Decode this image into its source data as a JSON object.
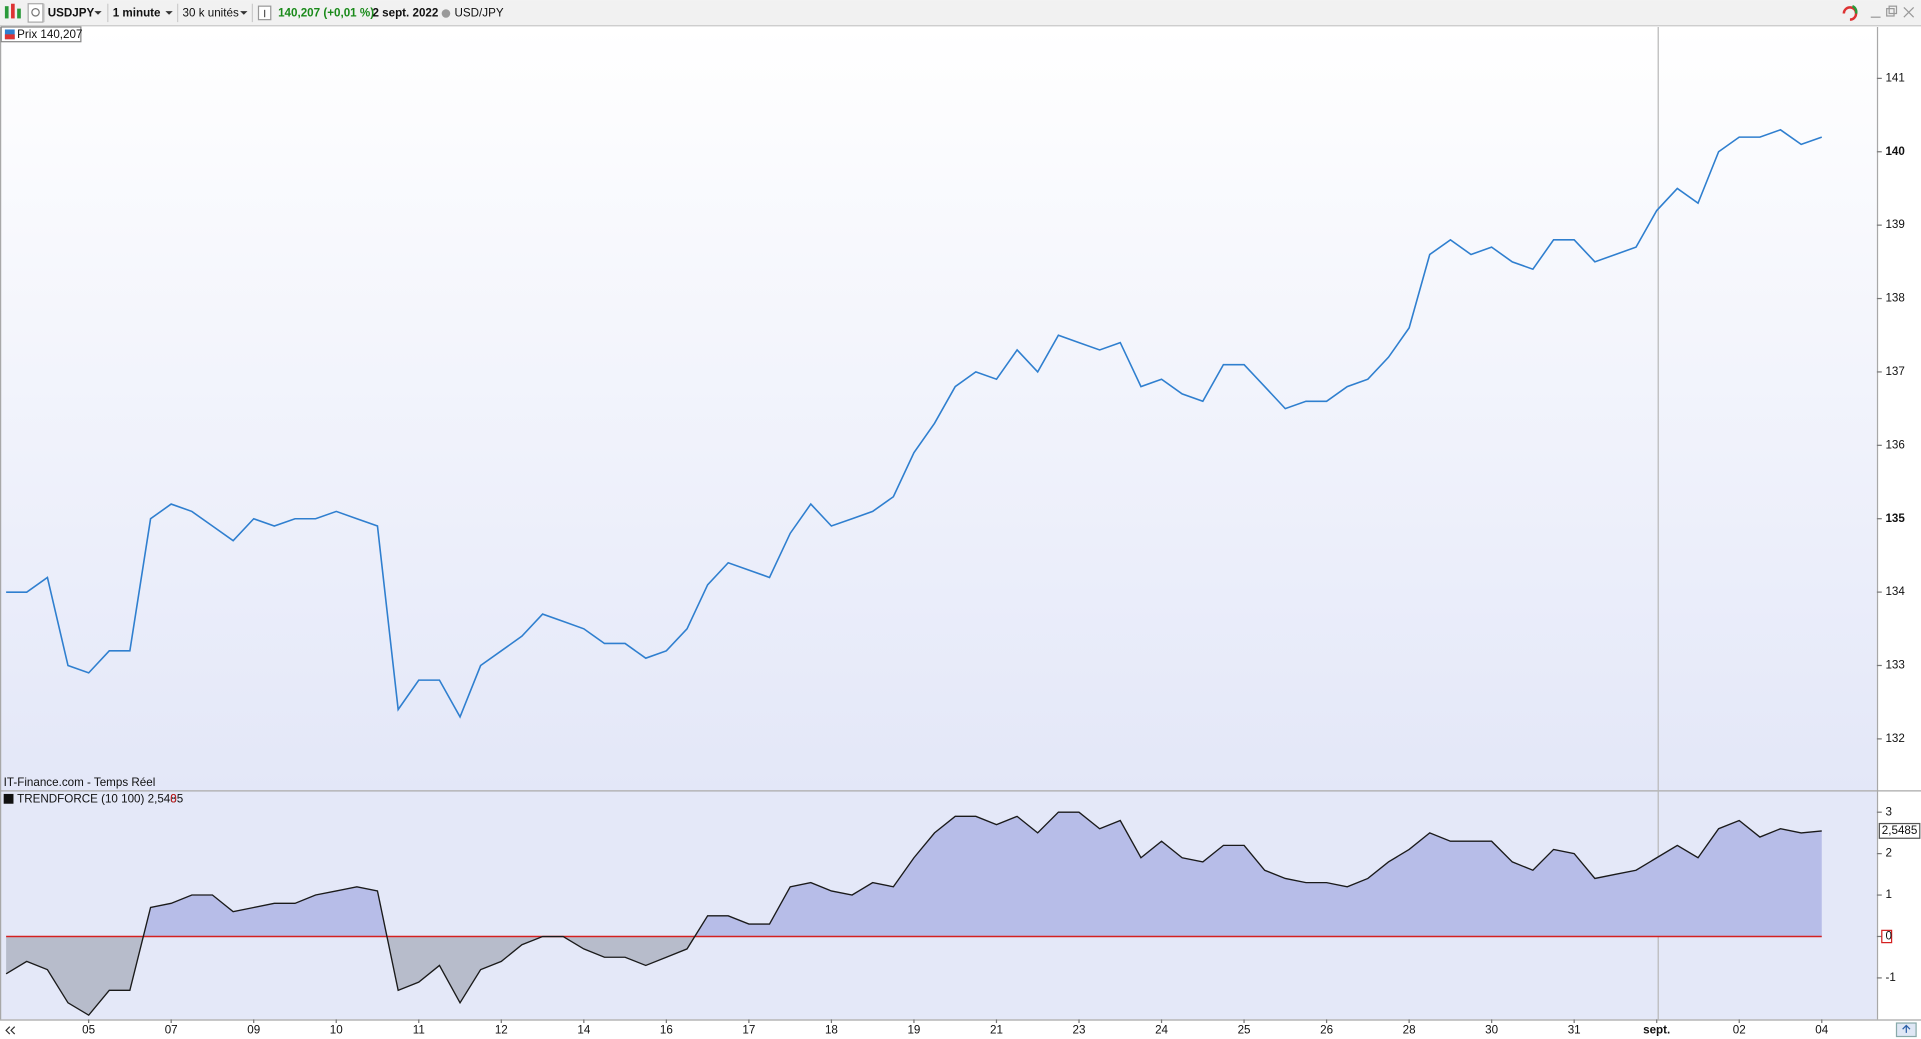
{
  "toolbar": {
    "symbol": "USDJPY",
    "interval": "1 minute",
    "units": "30 k unités",
    "quote": "140,207 (+0,01 %)",
    "date": "2 sept. 2022",
    "instrument": "USD/JPY"
  },
  "chart_data": [
    {
      "type": "line",
      "legend": "Prix 140,207",
      "source": "IT-Finance.com - Temps Réel",
      "color": "#2f7fcf",
      "categories": [
        null,
        null,
        null,
        null,
        "05",
        null,
        null,
        null,
        "07",
        null,
        null,
        null,
        "09",
        null,
        null,
        null,
        "10",
        null,
        null,
        null,
        "11",
        null,
        null,
        null,
        "12",
        null,
        null,
        null,
        "14",
        null,
        null,
        null,
        "16",
        null,
        null,
        null,
        "17",
        null,
        null,
        null,
        "18",
        null,
        null,
        null,
        "19",
        null,
        null,
        null,
        "21",
        null,
        null,
        null,
        "23",
        null,
        null,
        null,
        "24",
        null,
        null,
        null,
        "25",
        null,
        null,
        null,
        "26",
        null,
        null,
        null,
        "28",
        null,
        null,
        null,
        "30",
        null,
        null,
        null,
        "31",
        null,
        null,
        null,
        "sept.",
        null,
        null,
        null,
        "02",
        null,
        null,
        null,
        "04"
      ],
      "values": [
        134.0,
        134.0,
        134.2,
        133.0,
        132.9,
        133.2,
        133.2,
        135.0,
        135.2,
        135.1,
        134.9,
        134.7,
        135.0,
        134.9,
        135.0,
        135.0,
        135.1,
        135.0,
        134.9,
        132.4,
        132.8,
        132.8,
        132.3,
        133.0,
        133.2,
        133.4,
        133.7,
        133.6,
        133.5,
        133.3,
        133.3,
        133.1,
        133.2,
        133.5,
        134.1,
        134.4,
        134.3,
        134.2,
        134.8,
        135.2,
        134.9,
        135.0,
        135.1,
        135.3,
        135.9,
        136.3,
        136.8,
        137.0,
        136.9,
        137.3,
        137.0,
        137.5,
        137.4,
        137.3,
        137.4,
        136.8,
        136.9,
        136.7,
        136.6,
        137.1,
        137.1,
        136.8,
        136.5,
        136.6,
        136.6,
        136.8,
        136.9,
        137.2,
        137.6,
        138.6,
        138.8,
        138.6,
        138.7,
        138.5,
        138.4,
        138.8,
        138.8,
        138.5,
        138.6,
        138.7,
        139.2,
        139.5,
        139.3,
        140.0,
        140.2,
        140.2,
        140.3,
        140.1,
        140.2
      ],
      "ylim": [
        131.3,
        141.7
      ],
      "yticks": [
        132,
        133,
        134,
        135,
        136,
        137,
        138,
        139,
        140,
        141
      ],
      "grid": false
    },
    {
      "type": "area",
      "legend": "TRENDFORCE (10 100) 2,5485",
      "legend_flag": "0",
      "last_value_label": "2,5485",
      "color": "#1a1a1a",
      "fill": "#b7bde8",
      "negative_fill": "#b7bccb",
      "baseline": 0,
      "baseline_color": "#d42020",
      "values": [
        -0.9,
        -0.6,
        -0.8,
        -1.6,
        -1.9,
        -1.3,
        -1.3,
        0.7,
        0.8,
        1.0,
        1.0,
        0.6,
        0.7,
        0.8,
        0.8,
        1.0,
        1.1,
        1.2,
        1.1,
        -1.3,
        -1.1,
        -0.7,
        -1.6,
        -0.8,
        -0.6,
        -0.2,
        0.0,
        0.0,
        -0.3,
        -0.5,
        -0.5,
        -0.7,
        -0.5,
        -0.3,
        0.5,
        0.5,
        0.3,
        0.3,
        1.2,
        1.3,
        1.1,
        1.0,
        1.3,
        1.2,
        1.9,
        2.5,
        2.9,
        2.9,
        2.7,
        2.9,
        2.5,
        3.0,
        3.0,
        2.6,
        2.8,
        1.9,
        2.3,
        1.9,
        1.8,
        2.2,
        2.2,
        1.6,
        1.4,
        1.3,
        1.3,
        1.2,
        1.4,
        1.8,
        2.1,
        2.5,
        2.3,
        2.3,
        2.3,
        1.8,
        1.6,
        2.1,
        2.0,
        1.4,
        1.5,
        1.6,
        1.9,
        2.2,
        1.9,
        2.6,
        2.8,
        2.4,
        2.6,
        2.5,
        2.5485
      ],
      "ylim": [
        -2.0,
        3.5
      ],
      "yticks": [
        -1,
        0,
        1,
        2,
        3
      ],
      "grid": false
    }
  ]
}
